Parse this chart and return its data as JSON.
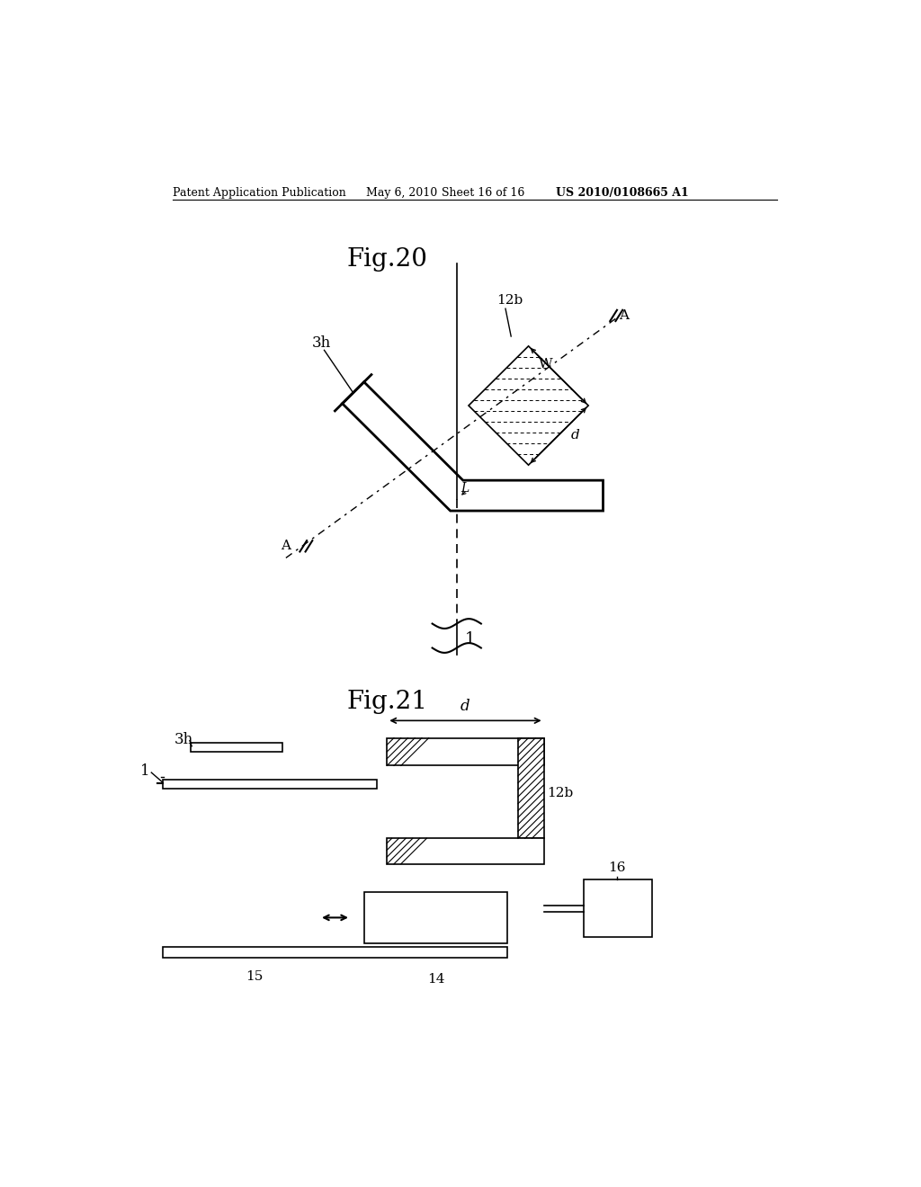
{
  "bg_color": "#ffffff",
  "fig_width": 10.24,
  "fig_height": 13.2,
  "header_text": "Patent Application Publication",
  "header_date": "May 6, 2010",
  "header_sheet": "Sheet 16 of 16",
  "header_patent": "US 2010/0108665 A1",
  "fig20_title": "Fig.20",
  "fig21_title": "Fig.21"
}
